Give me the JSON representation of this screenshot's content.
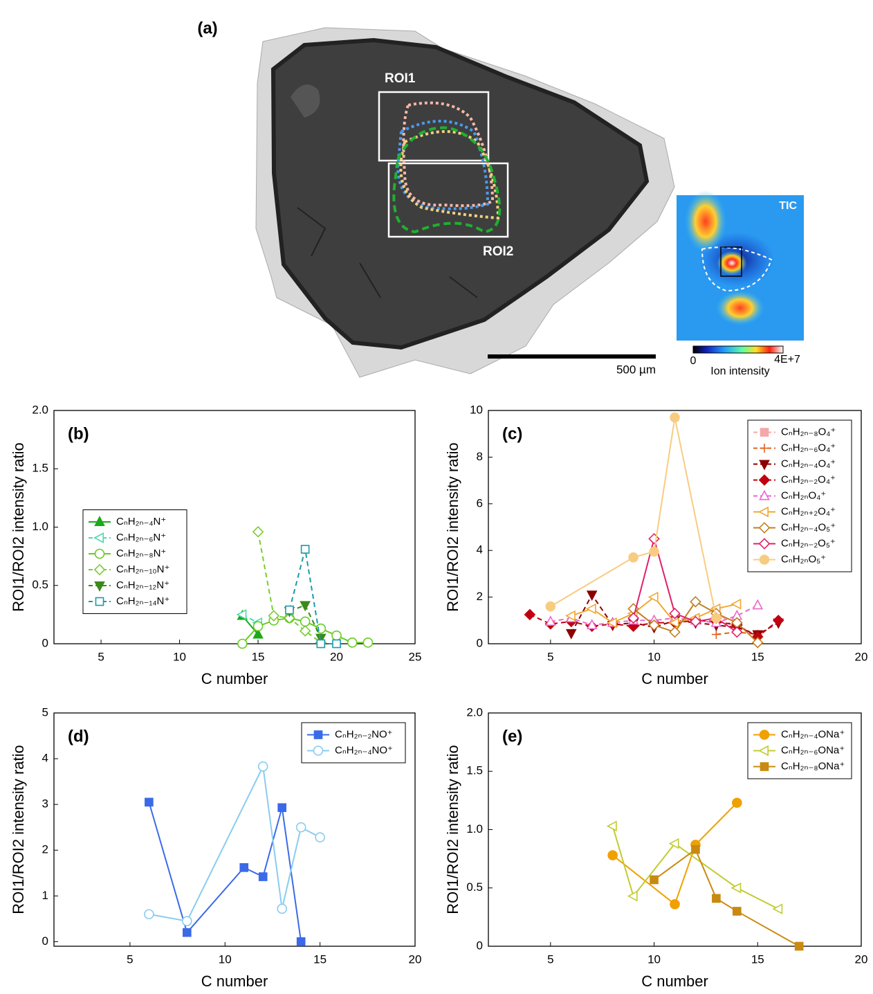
{
  "image_panel": {
    "label": "(a)",
    "roi1": "ROI1",
    "roi2": "ROI2",
    "scale_bar": "500 µm",
    "tic_label": "TIC",
    "colorbar_min": "0",
    "colorbar_max": "4E+7",
    "colorbar_title": "Ion intensity"
  },
  "chart_data": [
    {
      "type": "line",
      "title": "(b)",
      "x_label": "C number",
      "y_label": "ROI1/ROI2 intensity ratio",
      "xlim": [
        2,
        25
      ],
      "xticks": [
        5,
        10,
        15,
        20,
        25
      ],
      "ylim": [
        0,
        2
      ],
      "yticks": [
        0,
        0.5,
        {
          "value": 1,
          "label": "1.0"
        },
        1.5,
        {
          "value": 2,
          "label": "2.0"
        }
      ],
      "legend": "center left",
      "series": [
        {
          "name": "CₙH₂ₙ₋₄N⁺",
          "color": "#1aaa1a",
          "marker": "triangle-up",
          "filled": true,
          "dashed": false,
          "x": [
            14,
            15
          ],
          "values": [
            0.24,
            0.08
          ]
        },
        {
          "name": "CₙH₂ₙ₋₆N⁺",
          "color": "#4fd8b0",
          "marker": "triangle-left",
          "filled": false,
          "dashed": true,
          "x": [
            14,
            15
          ],
          "values": [
            0.25,
            0.18
          ]
        },
        {
          "name": "CₙH₂ₙ₋₈N⁺",
          "color": "#66cc22",
          "marker": "circle",
          "filled": false,
          "dashed": false,
          "x": [
            14,
            15,
            16,
            17,
            18,
            19,
            20,
            21,
            22
          ],
          "values": [
            0,
            0.15,
            0.2,
            0.22,
            0.19,
            0.13,
            0.07,
            0.01,
            0.01
          ]
        },
        {
          "name": "CₙH₂ₙ₋₁₀N⁺",
          "color": "#7acc33",
          "marker": "diamond",
          "filled": false,
          "dashed": true,
          "x": [
            15,
            16,
            17,
            18,
            19
          ],
          "values": [
            0.96,
            0.24,
            0.22,
            0.11,
            0.01
          ]
        },
        {
          "name": "CₙH₂ₙ₋₁₂N⁺",
          "color": "#3a8a1a",
          "marker": "triangle-down",
          "filled": true,
          "dashed": true,
          "x": [
            17,
            18,
            19
          ],
          "values": [
            0.28,
            0.33,
            0.05
          ]
        },
        {
          "name": "CₙH₂ₙ₋₁₄N⁺",
          "color": "#1a9aaa",
          "marker": "square",
          "filled": false,
          "dashed": true,
          "x": [
            17,
            18,
            19,
            20
          ],
          "values": [
            0.29,
            0.81,
            0,
            0
          ]
        }
      ]
    },
    {
      "type": "line",
      "title": "(c)",
      "x_label": "C number",
      "y_label": "ROI1/ROI2 intensity ratio",
      "xlim": [
        2,
        20
      ],
      "xticks": [
        5,
        10,
        15,
        20
      ],
      "ylim": [
        0,
        10
      ],
      "yticks": [
        0,
        2,
        4,
        6,
        8,
        10
      ],
      "legend": "upper right",
      "series": [
        {
          "name": "CₙH₂ₙ₋₈O₄⁺",
          "color": "#f4a8a8",
          "marker": "square",
          "filled": true,
          "dashed": true,
          "x": [
            13,
            14
          ],
          "values": [
            1.4,
            0.6
          ]
        },
        {
          "name": "CₙH₂ₙ₋₆O₄⁺",
          "color": "#e06020",
          "marker": "plus",
          "filled": true,
          "dashed": true,
          "x": [
            13,
            14,
            15
          ],
          "values": [
            0.4,
            0.5,
            0.4
          ]
        },
        {
          "name": "CₙH₂ₙ₋₄O₄⁺",
          "color": "#8b0000",
          "marker": "triangle-down",
          "filled": true,
          "dashed": true,
          "x": [
            6,
            7,
            8,
            9,
            10,
            11,
            12,
            13,
            14,
            15,
            16
          ],
          "values": [
            0.45,
            2.1,
            0.8,
            0.9,
            0.7,
            1.0,
            0.9,
            0.8,
            0.7,
            0.4,
            0.9
          ]
        },
        {
          "name": "CₙH₂ₙ₋₂O₄⁺",
          "color": "#c00010",
          "marker": "diamond",
          "filled": true,
          "dashed": true,
          "x": [
            4,
            5,
            6,
            7,
            8,
            9,
            10,
            11,
            12,
            13,
            14,
            15,
            16
          ],
          "values": [
            1.25,
            0.85,
            0.95,
            0.75,
            0.85,
            0.75,
            0.9,
            0.9,
            1.0,
            0.95,
            0.8,
            0.3,
            1.0
          ]
        },
        {
          "name": "CₙH₂ₙO₄⁺",
          "color": "#ee66cc",
          "marker": "triangle-up",
          "filled": false,
          "dashed": true,
          "x": [
            5,
            6,
            7,
            8,
            9,
            10,
            11,
            12,
            13,
            14,
            15
          ],
          "values": [
            0.95,
            1.1,
            0.8,
            0.9,
            1.0,
            1.0,
            1.1,
            1.0,
            0.9,
            1.2,
            1.65
          ]
        },
        {
          "name": "CₙH₂ₙ₊₂O₄⁺",
          "color": "#f0a830",
          "marker": "triangle-left",
          "filled": false,
          "dashed": false,
          "x": [
            6,
            7,
            8,
            9,
            10,
            11,
            12,
            13,
            14
          ],
          "values": [
            1.2,
            1.5,
            0.9,
            1.3,
            2.0,
            0.9,
            1.1,
            1.5,
            1.7
          ]
        },
        {
          "name": "CₙH₂ₙ₋₄O₅⁺",
          "color": "#c08020",
          "marker": "diamond",
          "filled": false,
          "dashed": false,
          "x": [
            9,
            10,
            11,
            12,
            13,
            14,
            15
          ],
          "values": [
            1.5,
            0.8,
            0.5,
            1.8,
            1.3,
            0.9,
            0.05
          ]
        },
        {
          "name": "CₙH₂ₙ₋₂O₅⁺",
          "color": "#e0206a",
          "marker": "diamond",
          "filled": false,
          "dashed": false,
          "x": [
            9,
            10,
            11,
            12,
            13,
            14
          ],
          "values": [
            1.1,
            4.5,
            1.3,
            0.95,
            1.1,
            0.5
          ]
        },
        {
          "name": "CₙH₂ₙO₅⁺",
          "color": "#f8cc80",
          "marker": "circle",
          "filled": true,
          "dashed": false,
          "x": [
            5,
            9,
            10,
            11,
            13
          ],
          "values": [
            1.6,
            3.7,
            3.95,
            9.7,
            1.1
          ]
        }
      ]
    },
    {
      "type": "line",
      "title": "(d)",
      "x_label": "C number",
      "y_label": "ROI1/ROI2 intensity ratio",
      "xlim": [
        1,
        20
      ],
      "xticks": [
        5,
        10,
        15,
        20
      ],
      "ylim": [
        -0.1,
        5
      ],
      "yticks": [
        0,
        1,
        2,
        3,
        4,
        5
      ],
      "legend": "upper right",
      "series": [
        {
          "name": "CₙH₂ₙ₋₂NO⁺",
          "color": "#3a6ae8",
          "marker": "square",
          "filled": true,
          "dashed": false,
          "x": [
            6,
            8,
            11,
            12,
            13,
            14
          ],
          "values": [
            3.05,
            0.2,
            1.62,
            1.42,
            2.93,
            0
          ]
        },
        {
          "name": "CₙH₂ₙ₋₄NO⁺",
          "color": "#88ccee",
          "marker": "circle",
          "filled": false,
          "dashed": false,
          "x": [
            6,
            8,
            12,
            13,
            14,
            15
          ],
          "values": [
            0.6,
            0.45,
            3.83,
            0.72,
            2.5,
            2.28
          ]
        }
      ]
    },
    {
      "type": "line",
      "title": "(e)",
      "x_label": "C number",
      "y_label": "ROI1/ROI2 intensity ratio",
      "xlim": [
        2,
        20
      ],
      "xticks": [
        5,
        10,
        15,
        20
      ],
      "ylim": [
        0,
        2
      ],
      "yticks": [
        0,
        0.5,
        {
          "value": 1,
          "label": "1.0"
        },
        1.5,
        {
          "value": 2,
          "label": "2.0"
        }
      ],
      "legend": "upper right",
      "series": [
        {
          "name": "CₙH₂ₙ₋₄ONa⁺",
          "color": "#f0a000",
          "marker": "circle",
          "filled": true,
          "dashed": false,
          "x": [
            8,
            11,
            12,
            14
          ],
          "values": [
            0.78,
            0.36,
            0.87,
            1.23
          ]
        },
        {
          "name": "CₙH₂ₙ₋₆ONa⁺",
          "color": "#c0cc30",
          "marker": "triangle-left",
          "filled": false,
          "dashed": false,
          "x": [
            8,
            9,
            11,
            14,
            16
          ],
          "values": [
            1.03,
            0.43,
            0.88,
            0.5,
            0.32
          ]
        },
        {
          "name": "CₙH₂ₙ₋₈ONa⁺",
          "color": "#c88a10",
          "marker": "square",
          "filled": true,
          "dashed": false,
          "x": [
            10,
            12,
            13,
            14,
            17
          ],
          "values": [
            0.57,
            0.83,
            0.41,
            0.3,
            0
          ]
        }
      ]
    }
  ]
}
